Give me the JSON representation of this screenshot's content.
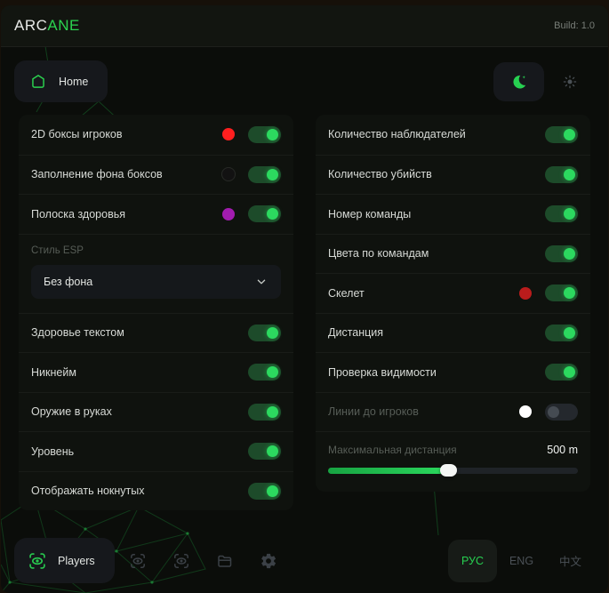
{
  "header": {
    "logo_primary": "ARC",
    "logo_accent": "ANE",
    "build": "Build: 1.0"
  },
  "nav": {
    "home_label": "Home",
    "theme_active": "dark"
  },
  "columns": {
    "left": {
      "rows": [
        {
          "type": "toggle",
          "label": "2D боксы игроков",
          "color": "#ff1f1f",
          "on": true
        },
        {
          "type": "toggle",
          "label": "Заполнение фона боксов",
          "color": "#121212",
          "on": true
        },
        {
          "type": "toggle",
          "label": "Полоска здоровья",
          "color": "#a21caf",
          "on": true
        },
        {
          "type": "select",
          "label": "Стиль ESP",
          "value": "Без фона"
        },
        {
          "type": "toggle",
          "label": "Здоровье текстом",
          "on": true
        },
        {
          "type": "toggle",
          "label": "Никнейм",
          "on": true
        },
        {
          "type": "toggle",
          "label": "Оружие в руках",
          "on": true
        },
        {
          "type": "toggle",
          "label": "Уровень",
          "on": true
        },
        {
          "type": "toggle",
          "label": "Отображать нокнутых",
          "on": true
        }
      ]
    },
    "right": {
      "rows": [
        {
          "type": "toggle",
          "label": "Количество наблюдателей",
          "on": true
        },
        {
          "type": "toggle",
          "label": "Количество убийств",
          "on": true
        },
        {
          "type": "toggle",
          "label": "Номер команды",
          "on": true
        },
        {
          "type": "toggle",
          "label": "Цвета по командам",
          "on": true
        },
        {
          "type": "toggle",
          "label": "Скелет",
          "color": "#b91c1c",
          "on": true
        },
        {
          "type": "toggle",
          "label": "Дистанция",
          "on": true
        },
        {
          "type": "toggle",
          "label": "Проверка видимости",
          "on": true
        },
        {
          "type": "toggle",
          "label": "Линии до игроков",
          "color": "#ffffff",
          "on": false,
          "dimmed": true
        },
        {
          "type": "slider",
          "label": "Максимальная дистанция",
          "value": "500 m",
          "percent": 48,
          "dimmed": true
        }
      ]
    }
  },
  "footer": {
    "players_label": "Players",
    "icons": [
      "players-scan-icon",
      "aim-scan-icon",
      "spectate-scan-icon",
      "folder-icon",
      "gear-icon"
    ],
    "languages": [
      {
        "label": "РУС",
        "active": true
      },
      {
        "label": "ENG",
        "active": false
      },
      {
        "label": "中文",
        "active": false
      }
    ]
  },
  "colors": {
    "accent_green": "#2bd24f",
    "toggle_on_track": "#1d4b2a",
    "toggle_knob": "#2cd95f",
    "box_color": "#ff1f1f",
    "box_fill_color": "#121212",
    "health_bar_color": "#a21caf",
    "skeleton_color": "#b91c1c",
    "lines_color": "#ffffff"
  }
}
